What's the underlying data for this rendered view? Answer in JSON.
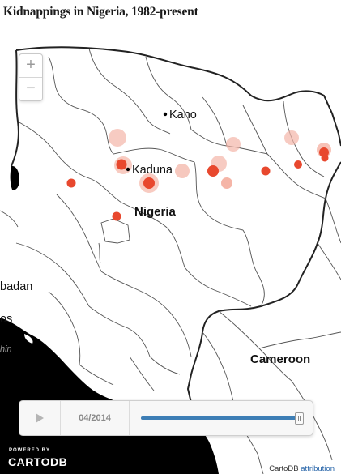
{
  "title": "Kidnappings in Nigeria, 1982-present",
  "zoom": {
    "in_label": "+",
    "out_label": "−"
  },
  "cities": [
    {
      "name": "Kano",
      "dot": true
    },
    {
      "name": "Kaduna",
      "dot": true
    },
    {
      "name": "Nigeria",
      "dot": false
    },
    {
      "name": "Cameroon",
      "dot": false
    },
    {
      "name": "badan",
      "dot": false
    },
    {
      "name": "os",
      "dot": false
    },
    {
      "name": "hin",
      "dot": false
    }
  ],
  "player": {
    "date": "04/2014",
    "progress": 1.0
  },
  "branding": {
    "powered": "POWERED BY",
    "name": "CARTODB"
  },
  "attribution": {
    "text": "CartoDB",
    "link": "attribution"
  },
  "colors": {
    "marker": "#e8482e",
    "marker_faded": "#f3b5a8",
    "water": "#000000",
    "border": "#222222",
    "slider": "#3d7eb5"
  }
}
